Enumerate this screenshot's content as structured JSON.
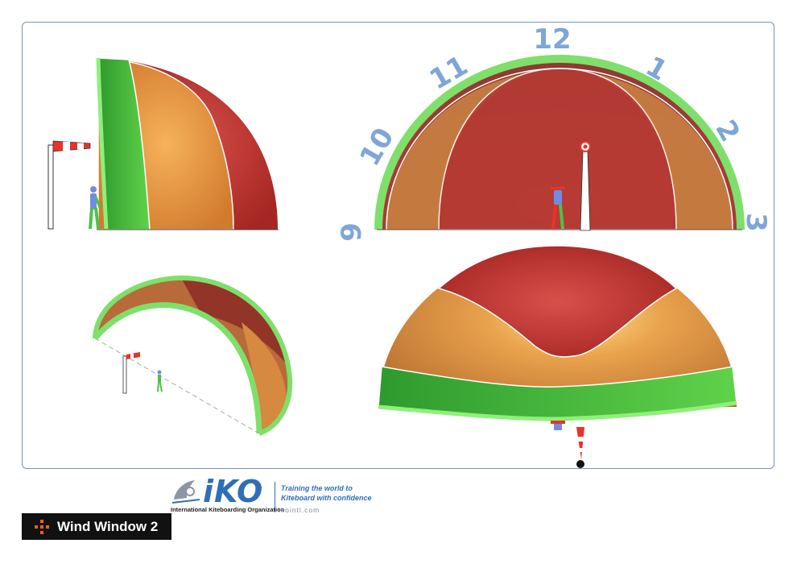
{
  "clock": {
    "n9": "9",
    "n10": "10",
    "n11": "11",
    "n12": "12",
    "n1": "1",
    "n2": "2",
    "n3": "3"
  },
  "colors": {
    "green": "#5fd24a",
    "orange": "#dd8a3a",
    "red": "#b8302c",
    "clock_numbers": "#7ea6d6",
    "frame": "#7a93b0",
    "brand_blue": "#2f6fb7",
    "title_bar": "#111111",
    "title_mark": "#ff5a1f"
  },
  "logo": {
    "wordmark": "iKO",
    "organization": "International Kiteboarding Organization",
    "tagline_1": "Training the world to",
    "tagline_2": "Kiteboard with confidence",
    "url": "ikointl.com"
  },
  "title": "Wind Window 2"
}
